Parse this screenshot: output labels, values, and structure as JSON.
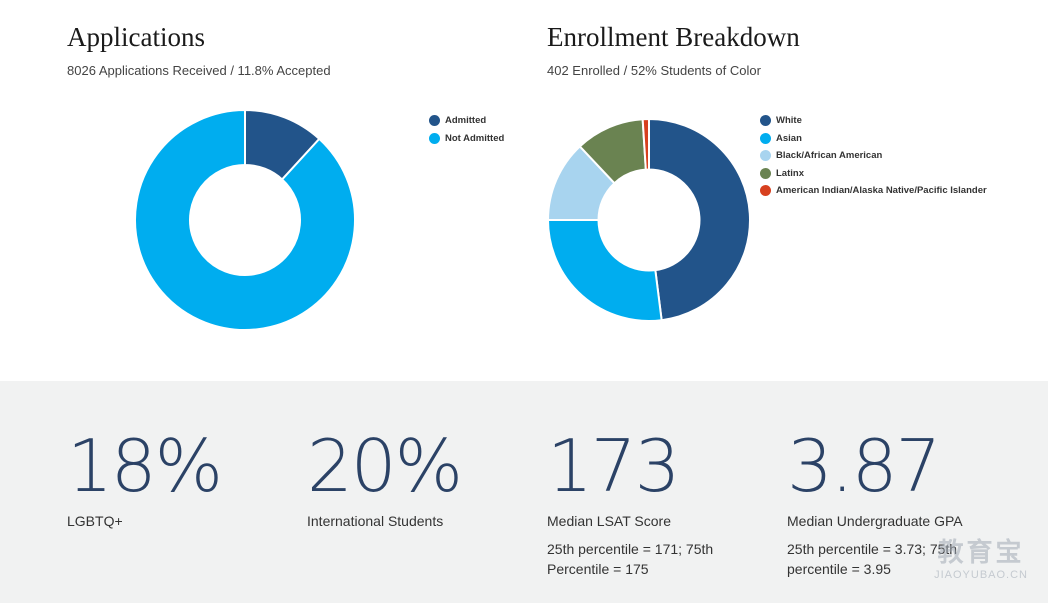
{
  "applications": {
    "title": "Applications",
    "subtitle": "8026 Applications Received / 11.8% Accepted"
  },
  "enrollment": {
    "title": "Enrollment Breakdown",
    "subtitle": "402 Enrolled / 52% Students of Color"
  },
  "chart_data": [
    {
      "type": "pie",
      "title": "Applications",
      "donut": true,
      "legend_position": "right",
      "categories": [
        "Admitted",
        "Not Admitted"
      ],
      "values": [
        11.8,
        88.2
      ],
      "colors": [
        "#22548a",
        "#00adef"
      ]
    },
    {
      "type": "pie",
      "title": "Enrollment Breakdown",
      "donut": true,
      "legend_position": "right",
      "categories": [
        "White",
        "Asian",
        "Black/African American",
        "Latinx",
        "American Indian/Alaska Native/Pacific Islander"
      ],
      "values": [
        48,
        27,
        13,
        11,
        1
      ],
      "colors": [
        "#22548a",
        "#00adef",
        "#a8d4ef",
        "#6a8351",
        "#d7401f"
      ]
    }
  ],
  "stats": [
    {
      "value": "18%",
      "label": "LGBTQ+",
      "note": ""
    },
    {
      "value": "20%",
      "label": "International Students",
      "note": ""
    },
    {
      "value": "173",
      "label": "Median LSAT Score",
      "note": "25th percentile = 171; 75th Percentile = 175"
    },
    {
      "value": "3.87",
      "label": "Median Undergraduate GPA",
      "note": "25th percentile = 3.73; 75th percentile = 3.95"
    }
  ],
  "watermark": {
    "main": "教育宝",
    "sub": "JIAOYUBAO.CN"
  }
}
